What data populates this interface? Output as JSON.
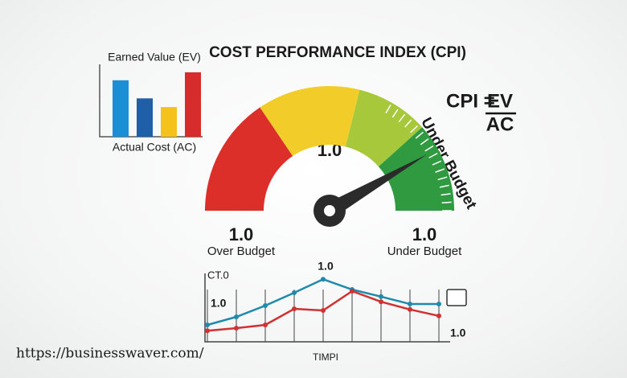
{
  "title": "COST PERFORMANCE INDEX (CPI)",
  "formula": {
    "lhs": "CPI =",
    "numerator": "EV",
    "denominator": "AC"
  },
  "bar_chart": {
    "title": "Earned Value (EV)",
    "xlabel": "Actual Cost (AC)",
    "ylim": [
      0,
      10
    ],
    "values": [
      7.8,
      5.3,
      4.1,
      8.9
    ],
    "colors": [
      "#1b8fd6",
      "#1f5fa8",
      "#f4c21b",
      "#d62c2c"
    ]
  },
  "gauge": {
    "center_label": "1.0",
    "arc_label": "Under Budget",
    "left": {
      "value": "1.0",
      "label": "Over Budget"
    },
    "right": {
      "value": "1.0",
      "label": "Under Budget"
    }
  },
  "line_chart": {
    "ylabel": "CT.0",
    "xlabel": "TIMPI",
    "labels": [
      "1.0",
      "1.0",
      "1.0"
    ],
    "ylim": [
      0,
      10
    ],
    "series": [
      {
        "color": "#1f8aae",
        "values": [
          2,
          3.25,
          5,
          7,
          9.1,
          7.5,
          6.4,
          5.25,
          5.25
        ]
      },
      {
        "color": "#d03232",
        "values": [
          1.1,
          1.5,
          2,
          4.5,
          4.25,
          7.25,
          5.6,
          4.4,
          3.4
        ]
      }
    ]
  },
  "footer": "https://businesswaver.com/"
}
